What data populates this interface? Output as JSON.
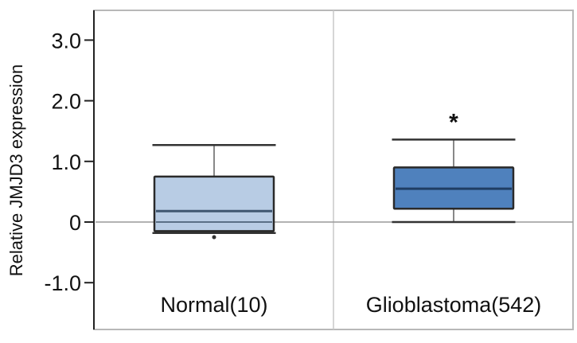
{
  "chart_data": {
    "type": "box",
    "title": "",
    "xlabel": "",
    "ylabel": "Relative JMJD3 expression",
    "ylim": [
      -1.6,
      3.4
    ],
    "yticks": [
      3.0,
      2.0,
      1.0,
      0,
      -1.0
    ],
    "ytick_labels": [
      "3.0",
      "2.0",
      "1.0",
      "0",
      "-1.0"
    ],
    "grid": false,
    "categories": [
      "Normal(10)",
      "Glioblastoma(542)"
    ],
    "series": [
      {
        "name": "Normal(10)",
        "n": 10,
        "whisker_high": 1.27,
        "q3": 0.75,
        "median": 0.18,
        "q1": -0.15,
        "whisker_low": -0.18,
        "outliers": [
          -0.25
        ],
        "color": "#b8cce4",
        "significance": ""
      },
      {
        "name": "Glioblastoma(542)",
        "n": 542,
        "whisker_high": 1.36,
        "q3": 0.9,
        "median": 0.55,
        "q1": 0.22,
        "whisker_low": 0.0,
        "outliers": [],
        "color": "#4f81bd",
        "significance": "*"
      }
    ],
    "reference_line": 0
  }
}
